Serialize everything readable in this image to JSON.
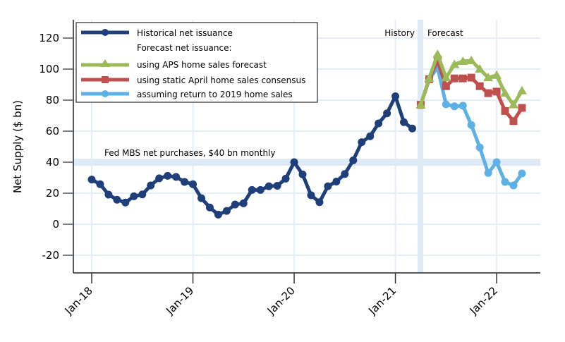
{
  "chart_data": {
    "type": "line",
    "title": "",
    "xlabel": "",
    "ylabel": "Net Supply ($ bn)",
    "ylim": [
      -30,
      130
    ],
    "yticks": [
      -20,
      0,
      20,
      40,
      60,
      80,
      100,
      120
    ],
    "ytick_labels": [
      "-20",
      "0",
      "20",
      "40",
      "60",
      "80",
      "100",
      "120"
    ],
    "xticks": [
      "Jan-18",
      "Jan-19",
      "Jan-20",
      "Jan-21",
      "Jan-22"
    ],
    "xtick_months": [
      0,
      12,
      24,
      36,
      48
    ],
    "x_unit": "months since Jan-18",
    "grid": true,
    "legend_position": "top-left",
    "legend": {
      "historical": "Historical net issuance",
      "forecast_header": "Forecast net issuance:",
      "aps": "using APS home sales forecast",
      "april": "using static April home sales consensus",
      "y2019": "assuming return to 2019 home sales"
    },
    "annotations": {
      "fed_line_label": "Fed MBS net purchases, $40 bn monthly",
      "fed_line_value": 40,
      "history_label": "History",
      "forecast_label": "Forecast",
      "divider_month": 39
    },
    "series": [
      {
        "name": "Historical net issuance",
        "color": "#1f3f7a",
        "marker": "circle",
        "start_month": 0,
        "values": [
          28.8,
          25.8,
          19.1,
          15.8,
          14.0,
          18.0,
          19.2,
          25.0,
          29.6,
          31.2,
          30.5,
          27.3,
          25.8,
          16.8,
          10.8,
          6.2,
          8.6,
          12.7,
          13.5,
          22.1,
          22.1,
          24.5,
          24.8,
          29.4,
          40.0,
          32.1,
          18.7,
          14.2,
          24.5,
          27.5,
          32.4,
          41.2,
          52.9,
          56.7,
          65.0,
          71.5,
          82.5,
          65.8,
          61.7
        ]
      },
      {
        "name": "using APS home sales forecast",
        "color": "#9bbb59",
        "marker": "triangle",
        "start_month": 39,
        "values": [
          77.0,
          94.0,
          109.5,
          94.5,
          103.0,
          105.0,
          105.5,
          100.0,
          94.5,
          96.0,
          84.5,
          77.0,
          86.0
        ]
      },
      {
        "name": "using static April home sales consensus",
        "color": "#c0504d",
        "marker": "square",
        "start_month": 39,
        "values": [
          77.0,
          93.5,
          105.5,
          89.0,
          94.0,
          94.0,
          94.5,
          89.0,
          84.5,
          85.5,
          73.0,
          66.5,
          75.0
        ]
      },
      {
        "name": "assuming return to 2019 home sales",
        "color": "#5db1e4",
        "marker": "circle",
        "start_month": 39,
        "values": [
          77.0,
          93.5,
          101.0,
          77.3,
          76.0,
          76.4,
          64.0,
          49.5,
          33.0,
          40.0,
          27.3,
          25.0,
          32.7
        ]
      }
    ]
  }
}
